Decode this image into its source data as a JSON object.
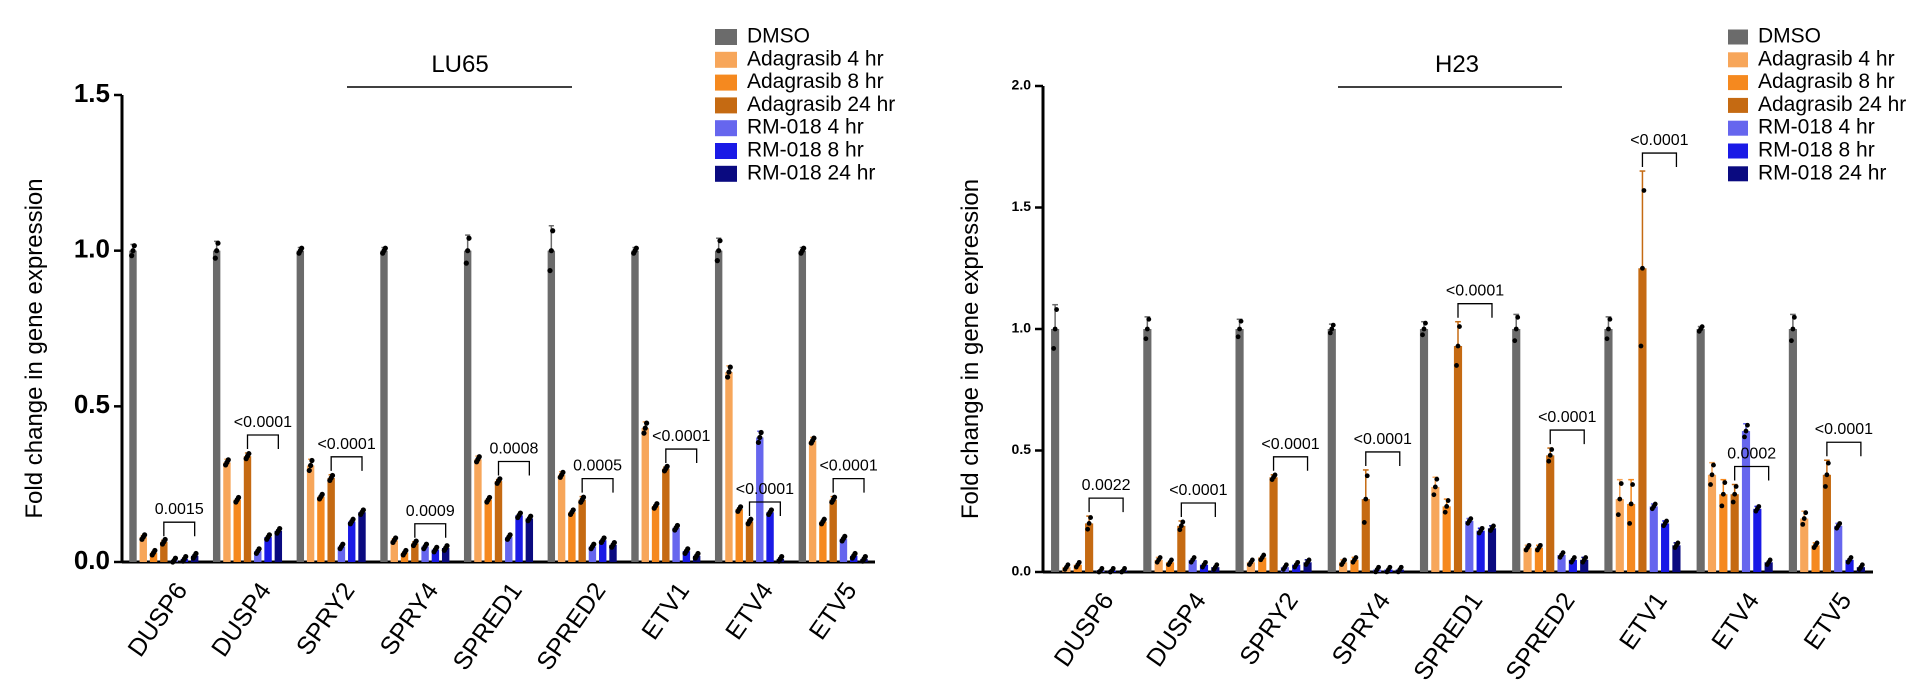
{
  "colors": {
    "DMSO": "#6b6b6b",
    "Adagrasib 4 hr": "#f7a65a",
    "Adagrasib 8 hr": "#f5891f",
    "Adagrasib 24 hr": "#c56a12",
    "RM-018 4 hr": "#6666ee",
    "RM-018 8 hr": "#1a1ae6",
    "RM-018 24 hr": "#0a0a80"
  },
  "chart_data": [
    {
      "type": "bar",
      "title": "LU65",
      "ylabel": "Fold change in gene expression",
      "xlabel": "",
      "ylim": [
        0,
        1.5
      ],
      "yticks": [
        "0.0",
        "0.5",
        "1.0",
        "1.5"
      ],
      "categories": [
        "DUSP6",
        "DUSP4",
        "SPRY2",
        "SPRY4",
        "SPRED1",
        "SPRED2",
        "ETV1",
        "ETV4",
        "ETV5"
      ],
      "series": [
        {
          "name": "DMSO",
          "values": [
            1.0,
            1.0,
            1.0,
            1.0,
            1.0,
            1.0,
            1.0,
            1.0,
            1.0
          ],
          "errors": [
            0.02,
            0.03,
            0.01,
            0.01,
            0.05,
            0.08,
            0.01,
            0.04,
            0.01
          ]
        },
        {
          "name": "Adagrasib 4 hr",
          "values": [
            0.08,
            0.32,
            0.31,
            0.07,
            0.33,
            0.28,
            0.43,
            0.61,
            0.39
          ],
          "errors": [
            0.005,
            0.01,
            0.02,
            0.005,
            0.01,
            0.01,
            0.02,
            0.02,
            0.01
          ]
        },
        {
          "name": "Adagrasib 8 hr",
          "values": [
            0.03,
            0.2,
            0.21,
            0.03,
            0.2,
            0.16,
            0.18,
            0.17,
            0.13
          ]
        },
        {
          "name": "Adagrasib 24 hr",
          "values": [
            0.065,
            0.34,
            0.27,
            0.06,
            0.26,
            0.2,
            0.3,
            0.13,
            0.2
          ],
          "errors": [
            0.005,
            0.01,
            0.01,
            0.005,
            0.005,
            0.01,
            0.005,
            0.005,
            0.01
          ]
        },
        {
          "name": "RM-018 4 hr",
          "values": [
            0.005,
            0.035,
            0.05,
            0.05,
            0.08,
            0.05,
            0.11,
            0.4,
            0.075
          ],
          "errors": [
            0,
            0,
            0,
            0,
            0,
            0,
            0,
            0.02,
            0
          ]
        },
        {
          "name": "RM-018 8 hr",
          "values": [
            0.01,
            0.08,
            0.13,
            0.04,
            0.15,
            0.07,
            0.035,
            0.16,
            0.02
          ]
        },
        {
          "name": "RM-018 24 hr",
          "values": [
            0.02,
            0.1,
            0.16,
            0.045,
            0.14,
            0.055,
            0.02,
            0.01,
            0.01
          ]
        }
      ],
      "annotations": [
        {
          "category": "DUSP6",
          "text": "0.0015"
        },
        {
          "category": "DUSP4",
          "text": "<0.0001"
        },
        {
          "category": "SPRY2",
          "text": "<0.0001"
        },
        {
          "category": "SPRY4",
          "text": "0.0009"
        },
        {
          "category": "SPRED1",
          "text": "0.0008"
        },
        {
          "category": "SPRED2",
          "text": "0.0005"
        },
        {
          "category": "ETV1",
          "text": "<0.0001"
        },
        {
          "category": "ETV4",
          "text": "<0.0001"
        },
        {
          "category": "ETV5",
          "text": "<0.0001"
        }
      ],
      "legend": "top-right"
    },
    {
      "type": "bar",
      "title": "H23",
      "ylabel": "Fold change in gene expression",
      "xlabel": "",
      "ylim": [
        0,
        2.0
      ],
      "yticks": [
        "0.0",
        "0.5",
        "1.0",
        "1.5",
        "2.0"
      ],
      "categories": [
        "DUSP6",
        "DUSP4",
        "SPRY2",
        "SPRY4",
        "SPRED1",
        "SPRED2",
        "ETV1",
        "ETV4",
        "ETV5"
      ],
      "series": [
        {
          "name": "DMSO",
          "values": [
            1.0,
            1.0,
            1.0,
            1.0,
            1.0,
            1.0,
            1.0,
            1.0,
            1.0
          ],
          "errors": [
            0.1,
            0.05,
            0.04,
            0.02,
            0.03,
            0.06,
            0.05,
            0.01,
            0.06
          ]
        },
        {
          "name": "Adagrasib 4 hr",
          "values": [
            0.02,
            0.05,
            0.04,
            0.04,
            0.35,
            0.1,
            0.3,
            0.4,
            0.22
          ],
          "errors": [
            0,
            0.01,
            0,
            0.01,
            0.04,
            0.01,
            0.08,
            0.05,
            0.03
          ]
        },
        {
          "name": "Adagrasib 8 hr",
          "values": [
            0.03,
            0.04,
            0.06,
            0.05,
            0.27,
            0.1,
            0.28,
            0.32,
            0.11
          ],
          "errors": [
            0,
            0,
            0,
            0.01,
            0.03,
            0.01,
            0.1,
            0.06,
            0.01
          ]
        },
        {
          "name": "Adagrasib 24 hr",
          "values": [
            0.2,
            0.19,
            0.39,
            0.3,
            0.93,
            0.48,
            1.25,
            0.32,
            0.4
          ],
          "errors": [
            0.03,
            0.02,
            0.01,
            0.12,
            0.1,
            0.03,
            0.4,
            0.04,
            0.06
          ]
        },
        {
          "name": "RM-018 4 hr",
          "values": [
            0.005,
            0.05,
            0.02,
            0.01,
            0.21,
            0.07,
            0.27,
            0.58,
            0.19
          ],
          "errors": [
            0,
            0,
            0,
            0,
            0.01,
            0,
            0.01,
            0.03,
            0.01
          ]
        },
        {
          "name": "RM-018 8 hr",
          "values": [
            0.005,
            0.03,
            0.03,
            0.01,
            0.17,
            0.05,
            0.2,
            0.26,
            0.05
          ],
          "errors": [
            0,
            0,
            0,
            0,
            0.01,
            0,
            0.01,
            0.01,
            0
          ]
        },
        {
          "name": "RM-018 24 hr",
          "values": [
            0.005,
            0.02,
            0.04,
            0.01,
            0.18,
            0.05,
            0.11,
            0.04,
            0.02
          ],
          "errors": [
            0,
            0,
            0.01,
            0,
            0.01,
            0.01,
            0.01,
            0,
            0
          ]
        }
      ],
      "annotations": [
        {
          "category": "DUSP6",
          "text": "0.0022"
        },
        {
          "category": "DUSP4",
          "text": "<0.0001"
        },
        {
          "category": "SPRY2",
          "text": "<0.0001"
        },
        {
          "category": "SPRY4",
          "text": "<0.0001"
        },
        {
          "category": "SPRED1",
          "text": "<0.0001"
        },
        {
          "category": "SPRED2",
          "text": "<0.0001"
        },
        {
          "category": "ETV1",
          "text": "<0.0001"
        },
        {
          "category": "ETV4",
          "text": "0.0002"
        },
        {
          "category": "ETV5",
          "text": "<0.0001"
        }
      ],
      "legend": "top-right"
    }
  ]
}
